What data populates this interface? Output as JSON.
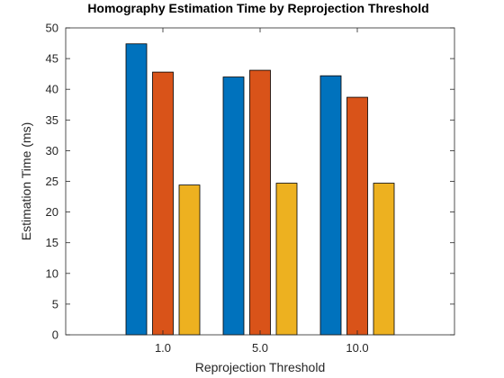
{
  "chart_data": {
    "type": "bar",
    "title": "Homography Estimation Time by Reprojection Threshold",
    "xlabel": "Reprojection Threshold",
    "ylabel": "Estimation Time (ms)",
    "categories": [
      "1.0",
      "5.0",
      "10.0"
    ],
    "series": [
      {
        "values": [
          47.4,
          42.0,
          42.2
        ],
        "color": "#0072BD"
      },
      {
        "values": [
          42.8,
          43.1,
          38.7
        ],
        "color": "#D95319"
      },
      {
        "values": [
          24.4,
          24.7,
          24.7
        ],
        "color": "#EDB120"
      }
    ],
    "ylim": [
      0,
      50
    ],
    "yticks": [
      0,
      5,
      10,
      15,
      20,
      25,
      30,
      35,
      40,
      45,
      50
    ],
    "grid": false,
    "legend": "none"
  }
}
